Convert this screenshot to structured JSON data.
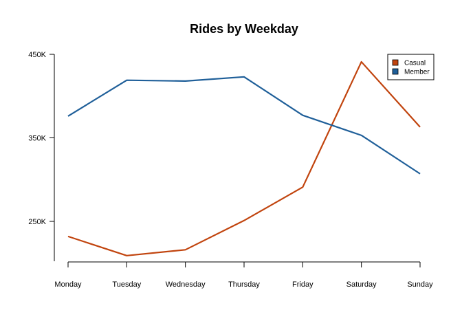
{
  "chart_data": {
    "type": "line",
    "title": "Rides by Weekday",
    "xlabel": "",
    "ylabel": "",
    "categories": [
      "Monday",
      "Tuesday",
      "Wednesday",
      "Thursday",
      "Friday",
      "Saturday",
      "Sunday"
    ],
    "series": [
      {
        "name": "Casual",
        "color": "#c1440e",
        "values": [
          232000,
          209000,
          216000,
          251000,
          291000,
          441000,
          363000
        ]
      },
      {
        "name": "Member",
        "color": "#1f5f99",
        "values": [
          376000,
          419000,
          418000,
          423000,
          377000,
          353000,
          307000
        ]
      }
    ],
    "yticks": [
      250000,
      350000,
      450000
    ],
    "ytick_labels": [
      "250K",
      "350K",
      "450K"
    ],
    "ylim": [
      200000,
      450000
    ],
    "grid": false,
    "legend_position": "top-right"
  }
}
